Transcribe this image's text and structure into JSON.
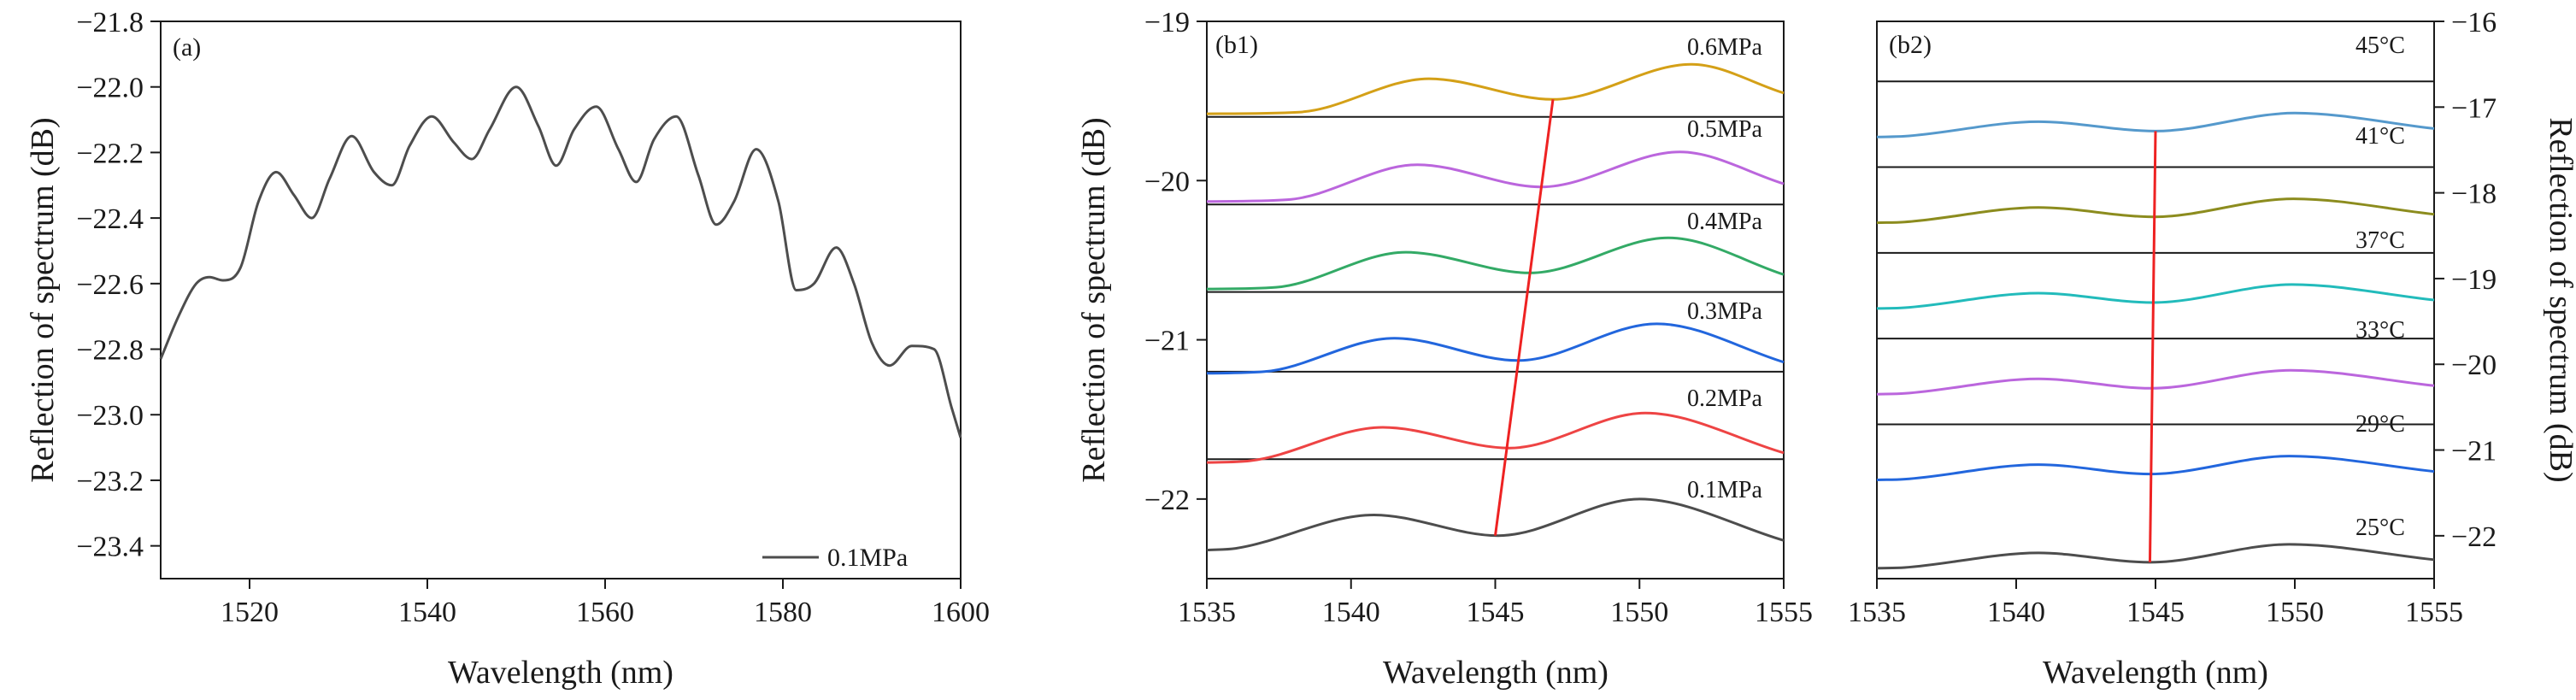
{
  "chart_data": [
    {
      "id": "a",
      "type": "line",
      "panel_label": "(a)",
      "xlabel": "Wavelength (nm)",
      "ylabel": "Reflection of  spectrum (dB)",
      "xlim": [
        1510,
        1600
      ],
      "ylim": [
        -23.5,
        -21.8
      ],
      "xticks": [
        1520,
        1540,
        1560,
        1580,
        1600
      ],
      "xtick_labels": [
        "1520",
        "1540",
        "1560",
        "1580",
        "1600"
      ],
      "yticks": [
        -21.8,
        -22.0,
        -22.2,
        -22.4,
        -22.6,
        -22.8,
        -23.0,
        -23.2,
        -23.4
      ],
      "ytick_labels": [
        "−21.8",
        "−22.0",
        "−22.2",
        "−22.4",
        "−22.6",
        "−22.8",
        "−23.0",
        "−23.2",
        "−23.4"
      ],
      "legend": {
        "label": "0.1MPa",
        "position": "bottom-right"
      },
      "series": [
        {
          "name": "0.1MPa",
          "color": "#4d4d4d",
          "x": [
            1510,
            1512,
            1514,
            1515.5,
            1517,
            1519,
            1521,
            1523,
            1525,
            1527,
            1529,
            1531.5,
            1534,
            1536,
            1538,
            1540.5,
            1543,
            1545,
            1547,
            1550,
            1552.5,
            1554.5,
            1556.5,
            1559,
            1561.5,
            1563.5,
            1565.5,
            1568,
            1570.5,
            1572.5,
            1574.5,
            1577,
            1579.5,
            1581.5,
            1583.5,
            1586,
            1588,
            1590,
            1592,
            1594.5,
            1597,
            1599,
            1600
          ],
          "y": [
            -22.83,
            -22.7,
            -22.6,
            -22.58,
            -22.59,
            -22.55,
            -22.35,
            -22.26,
            -22.33,
            -22.4,
            -22.28,
            -22.15,
            -22.26,
            -22.3,
            -22.18,
            -22.09,
            -22.17,
            -22.22,
            -22.13,
            -22.0,
            -22.12,
            -22.24,
            -22.13,
            -22.06,
            -22.19,
            -22.29,
            -22.16,
            -22.09,
            -22.27,
            -22.42,
            -22.35,
            -22.19,
            -22.35,
            -22.62,
            -22.6,
            -22.49,
            -22.6,
            -22.78,
            -22.85,
            -22.79,
            -22.8,
            -22.98,
            -23.07
          ]
        }
      ]
    },
    {
      "id": "b1",
      "type": "line",
      "panel_label": "(b1)",
      "xlabel": "Wavelength (nm)",
      "ylabel": "Reflection of spectrum (dB)",
      "xlim": [
        1535,
        1555
      ],
      "ylim": [
        -22.5,
        -19
      ],
      "xticks": [
        1535,
        1540,
        1545,
        1550,
        1555
      ],
      "xtick_labels": [
        "1535",
        "1540",
        "1545",
        "1550",
        "1555"
      ],
      "yticks": [
        -19,
        -20,
        -21,
        -22
      ],
      "ytick_labels": [
        "−19",
        "−20",
        "−21",
        "−22"
      ],
      "stack_separators": [
        -19.6,
        -20.15,
        -20.7,
        -21.2,
        -21.75
      ],
      "series": [
        {
          "name": "0.1MPa",
          "color": "#4d4d4d",
          "peak_valley": [
            1536,
            1540.8,
            1545.1,
            1550.0,
            1555
          ],
          "levels": [
            -22.31,
            -22.1,
            -22.23,
            -22.0,
            -22.26
          ]
        },
        {
          "name": "0.2MPa",
          "color": "#ee4444",
          "peak_valley": [
            1536.5,
            1541.1,
            1545.5,
            1550.2,
            1555
          ],
          "levels": [
            -21.76,
            -21.55,
            -21.68,
            -21.46,
            -21.71
          ]
        },
        {
          "name": "0.3MPa",
          "color": "#2266dd",
          "peak_valley": [
            1537,
            1541.5,
            1545.8,
            1550.6,
            1555
          ],
          "levels": [
            -21.2,
            -20.99,
            -21.13,
            -20.9,
            -21.14
          ]
        },
        {
          "name": "0.4MPa",
          "color": "#33aa66",
          "peak_valley": [
            1537.4,
            1541.9,
            1546.2,
            1551.0,
            1555
          ],
          "levels": [
            -20.67,
            -20.45,
            -20.58,
            -20.36,
            -20.59
          ]
        },
        {
          "name": "0.5MPa",
          "color": "#bb66dd",
          "peak_valley": [
            1537.8,
            1542.3,
            1546.6,
            1551.4,
            1555
          ],
          "levels": [
            -20.12,
            -19.9,
            -20.04,
            -19.82,
            -20.02
          ]
        },
        {
          "name": "0.6MPa",
          "color": "#d4a017",
          "peak_valley": [
            1538.2,
            1542.7,
            1547.0,
            1551.8,
            1555
          ],
          "levels": [
            -19.57,
            -19.36,
            -19.49,
            -19.27,
            -19.45
          ]
        }
      ],
      "trend_line": {
        "color": "#ee2222",
        "points": [
          [
            1545.0,
            -22.23
          ],
          [
            1547.0,
            -19.49
          ]
        ]
      }
    },
    {
      "id": "b2",
      "type": "line",
      "panel_label": "(b2)",
      "xlabel": "Wavelength (nm)",
      "ylabel": "Reflection of spectrum (dB)",
      "y_axis_side": "right",
      "xlim": [
        1535,
        1555
      ],
      "ylim": [
        -22.5,
        -16
      ],
      "xticks": [
        1535,
        1540,
        1545,
        1550,
        1555
      ],
      "xtick_labels": [
        "1535",
        "1540",
        "1545",
        "1550",
        "1555"
      ],
      "yticks": [
        -16,
        -17,
        -18,
        -19,
        -20,
        -21,
        -22
      ],
      "ytick_labels": [
        "−16",
        "−17",
        "−18",
        "−19",
        "−20",
        "−21",
        "−22"
      ],
      "stack_separators": [
        -16.7,
        -17.7,
        -18.7,
        -19.7,
        -20.7
      ],
      "series": [
        {
          "name": "25°C",
          "color": "#4d4d4d",
          "peak_valley": [
            1536,
            1540.8,
            1544.8,
            1549.8,
            1555
          ],
          "levels": [
            -22.37,
            -22.2,
            -22.31,
            -22.1,
            -22.28
          ]
        },
        {
          "name": "29°C",
          "color": "#2266dd",
          "peak_valley": [
            1536,
            1540.8,
            1544.8,
            1549.8,
            1555
          ],
          "levels": [
            -21.34,
            -21.17,
            -21.28,
            -21.07,
            -21.25
          ]
        },
        {
          "name": "33°C",
          "color": "#bb66dd",
          "peak_valley": [
            1536,
            1540.8,
            1544.85,
            1549.85,
            1555
          ],
          "levels": [
            -20.34,
            -20.17,
            -20.28,
            -20.07,
            -20.25
          ]
        },
        {
          "name": "37°C",
          "color": "#22bbbb",
          "peak_valley": [
            1536,
            1540.8,
            1544.9,
            1549.9,
            1555
          ],
          "levels": [
            -19.34,
            -19.17,
            -19.28,
            -19.07,
            -19.25
          ]
        },
        {
          "name": "41°C",
          "color": "#8c8c1e",
          "peak_valley": [
            1536,
            1540.8,
            1544.95,
            1549.95,
            1555
          ],
          "levels": [
            -18.34,
            -18.17,
            -18.28,
            -18.07,
            -18.25
          ]
        },
        {
          "name": "45°C",
          "color": "#5599cc",
          "peak_valley": [
            1536,
            1540.8,
            1545.0,
            1550.0,
            1555
          ],
          "levels": [
            -17.34,
            -17.17,
            -17.28,
            -17.07,
            -17.25
          ]
        }
      ],
      "trend_line": {
        "color": "#ee2222",
        "points": [
          [
            1544.8,
            -22.31
          ],
          [
            1545.0,
            -17.28
          ]
        ]
      }
    }
  ]
}
